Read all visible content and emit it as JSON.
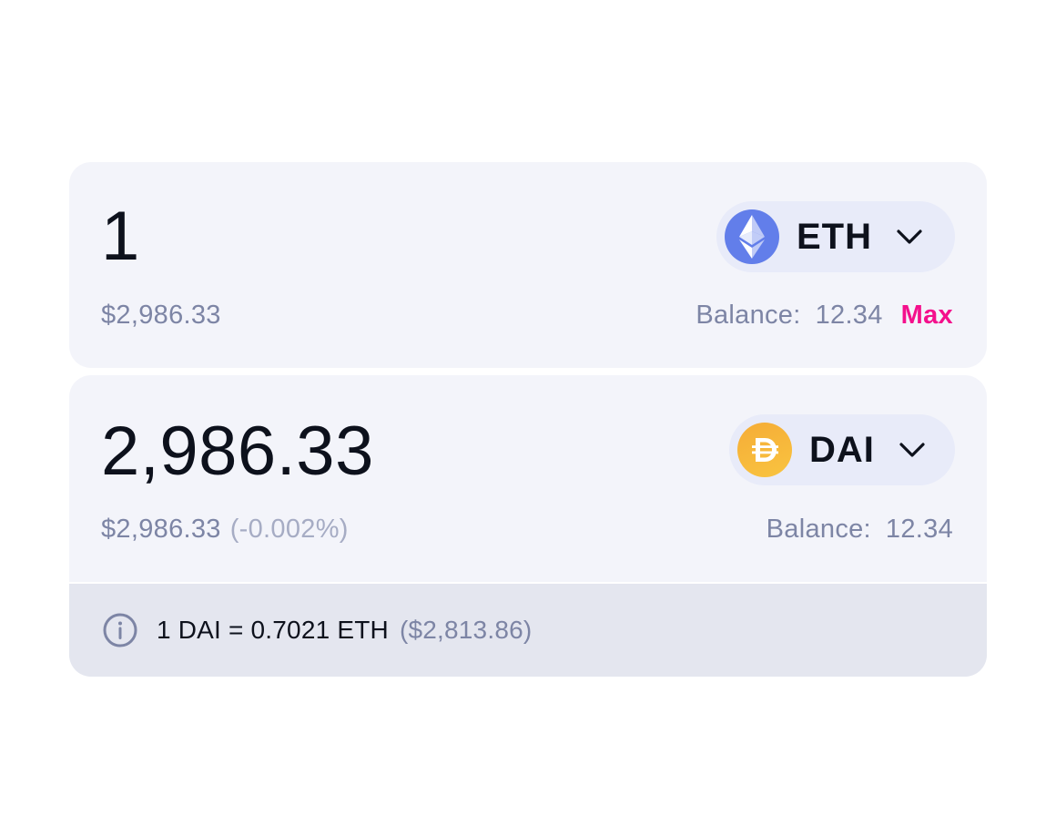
{
  "input_token": {
    "amount": "1",
    "usd_value": "$2,986.33",
    "symbol": "ETH",
    "icon": "ethereum-icon",
    "balance_label": "Balance:",
    "balance_value": "12.34",
    "max_label": "Max"
  },
  "output_token": {
    "amount": "2,986.33",
    "usd_value": "$2,986.33",
    "price_impact": "(-0.002%)",
    "symbol": "DAI",
    "icon": "dai-icon",
    "balance_label": "Balance:",
    "balance_value": "12.34"
  },
  "rate": {
    "text": "1 DAI = 0.7021 ETH",
    "usd": "($2,813.86)",
    "icon": "info-icon"
  },
  "colors": {
    "panel_bg": "#f3f4fa",
    "pill_bg": "#e8ebf9",
    "rate_bar_bg": "#e4e6ef",
    "accent_max": "#f4108c",
    "eth_brand": "#627eea",
    "dai_brand": "#f5ac37",
    "muted_text": "#7d85a5"
  }
}
